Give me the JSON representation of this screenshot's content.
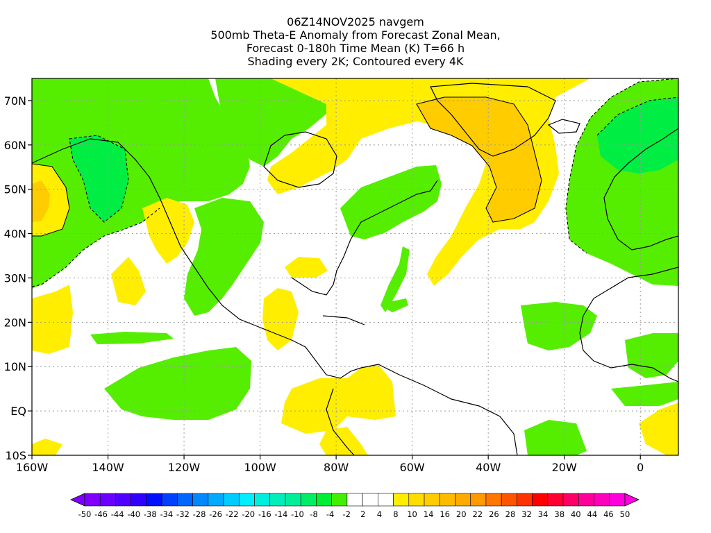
{
  "title": {
    "lines": [
      "06Z14NOV2025 navgem",
      "500mb Theta-E Anomaly from Forecast Zonal Mean,",
      "Forecast 0-180h Time Mean (K) T=66 h",
      "Shading every 2K; Contoured every 4K"
    ]
  },
  "map": {
    "lon_range": [
      -160,
      10
    ],
    "lat_range": [
      -10,
      75
    ],
    "x_ticks": [
      {
        "value": -160,
        "label": "160W"
      },
      {
        "value": -140,
        "label": "140W"
      },
      {
        "value": -120,
        "label": "120W"
      },
      {
        "value": -100,
        "label": "100W"
      },
      {
        "value": -80,
        "label": "80W"
      },
      {
        "value": -60,
        "label": "60W"
      },
      {
        "value": -40,
        "label": "40W"
      },
      {
        "value": -20,
        "label": "20W"
      },
      {
        "value": 0,
        "label": "0"
      }
    ],
    "y_ticks": [
      {
        "value": 70,
        "label": "70N"
      },
      {
        "value": 60,
        "label": "60N"
      },
      {
        "value": 50,
        "label": "50N"
      },
      {
        "value": 40,
        "label": "40N"
      },
      {
        "value": 30,
        "label": "30N"
      },
      {
        "value": 20,
        "label": "20N"
      },
      {
        "value": 10,
        "label": "10N"
      },
      {
        "value": 0,
        "label": "EQ"
      },
      {
        "value": -10,
        "label": "10S"
      }
    ],
    "grid": true,
    "colors": {
      "green_light": "#55ee00",
      "green_mid": "#00ee44",
      "green_teal": "#00ee99",
      "yellow": "#ffee00",
      "orange_light": "#ffcc00",
      "orange_mid": "#ffaa00",
      "land_outline": "#000000"
    }
  },
  "colorbar": {
    "labels": [
      "-50",
      "-46",
      "-44",
      "-40",
      "-38",
      "-34",
      "-32",
      "-28",
      "-26",
      "-22",
      "-20",
      "-16",
      "-14",
      "-10",
      "-8",
      "-4",
      "-2",
      "2",
      "4",
      "8",
      "10",
      "14",
      "16",
      "20",
      "22",
      "26",
      "28",
      "32",
      "34",
      "38",
      "40",
      "44",
      "46",
      "50"
    ],
    "colors": [
      "#8000ff",
      "#6a00ff",
      "#5000ff",
      "#3000ff",
      "#0010ff",
      "#0040ff",
      "#0066ff",
      "#0088ff",
      "#00aaff",
      "#00ccff",
      "#00eeff",
      "#00eedd",
      "#00eebb",
      "#00ee99",
      "#00ee66",
      "#00ee33",
      "#44ee00",
      "#ffffff",
      "#ffffff",
      "#ffffff",
      "#ffee00",
      "#ffdd00",
      "#ffcc00",
      "#ffbb00",
      "#ffaa00",
      "#ff9900",
      "#ff7700",
      "#ff5500",
      "#ff3300",
      "#ff0000",
      "#ff0033",
      "#ff0066",
      "#ff0099",
      "#ff00bb",
      "#ff00dd"
    ]
  }
}
